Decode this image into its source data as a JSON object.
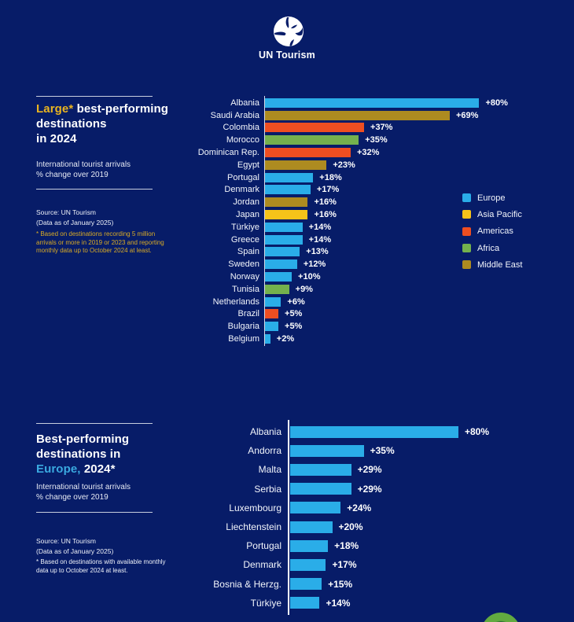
{
  "page": {
    "background": "#071c68"
  },
  "header": {
    "brand": "UN Tourism"
  },
  "colors": {
    "europe": "#2aade8",
    "asia_pacific": "#f6c319",
    "americas": "#ee4e21",
    "africa": "#74b14d",
    "middle_east": "#ad8b20",
    "accent_yellow": "#e9b420",
    "accent_blue": "#3aa9e0"
  },
  "panel_top": {
    "title_accent": "Large*",
    "title_after_accent": " best-performing",
    "title_line2": "destinations",
    "title_line3": "in 2024",
    "subtitle_line1": "International tourist arrivals",
    "subtitle_line2": "% change over 2019",
    "source_line1": "Source: UN Tourism",
    "source_line2": "(Data as of January 2025)",
    "footnote": "*  Based on destinations recording 5 million arrivals or more in 2019 or 2023 and reporting monthly data up to October 2024 at least."
  },
  "panel_bottom": {
    "title_line1": "Best-performing",
    "title_line2": "destinations in",
    "title_accent": "Europe,",
    "title_after_accent": " 2024*",
    "subtitle_line1": "International tourist arrivals",
    "subtitle_line2": "% change over 2019",
    "source_line1": "Source: UN Tourism",
    "source_line2": "(Data as of January 2025)",
    "footnote": "* Based on destinations with available monthly data up to October 2024 at least."
  },
  "chart_data": [
    {
      "type": "bar",
      "orientation": "horizontal",
      "title": "Large* best-performing destinations in 2024",
      "subtitle": "International tourist arrivals % change over 2019",
      "xlim": [
        0,
        84
      ],
      "grid": false,
      "legend_position": "right",
      "legend": [
        {
          "label": "Europe",
          "region": "europe"
        },
        {
          "label": "Asia Pacific",
          "region": "asia_pacific"
        },
        {
          "label": "Americas",
          "region": "americas"
        },
        {
          "label": "Africa",
          "region": "africa"
        },
        {
          "label": "Middle East",
          "region": "middle_east"
        }
      ],
      "rows": [
        {
          "label": "Albania",
          "value": 80,
          "display": "+80%",
          "region": "europe"
        },
        {
          "label": "Saudi Arabia",
          "value": 69,
          "display": "+69%",
          "region": "middle_east"
        },
        {
          "label": "Colombia",
          "value": 37,
          "display": "+37%",
          "region": "americas"
        },
        {
          "label": "Morocco",
          "value": 35,
          "display": "+35%",
          "region": "africa"
        },
        {
          "label": "Dominican Rep.",
          "value": 32,
          "display": "+32%",
          "region": "americas"
        },
        {
          "label": "Egypt",
          "value": 23,
          "display": "+23%",
          "region": "middle_east"
        },
        {
          "label": "Portugal",
          "value": 18,
          "display": "+18%",
          "region": "europe"
        },
        {
          "label": "Denmark",
          "value": 17,
          "display": "+17%",
          "region": "europe"
        },
        {
          "label": "Jordan",
          "value": 16,
          "display": "+16%",
          "region": "middle_east"
        },
        {
          "label": "Japan",
          "value": 16,
          "display": "+16%",
          "region": "asia_pacific"
        },
        {
          "label": "Türkiye",
          "value": 14,
          "display": "+14%",
          "region": "europe"
        },
        {
          "label": "Greece",
          "value": 14,
          "display": "+14%",
          "region": "europe"
        },
        {
          "label": "Spain",
          "value": 13,
          "display": "+13%",
          "region": "europe"
        },
        {
          "label": "Sweden",
          "value": 12,
          "display": "+12%",
          "region": "europe"
        },
        {
          "label": "Norway",
          "value": 10,
          "display": "+10%",
          "region": "europe"
        },
        {
          "label": "Tunisia",
          "value": 9,
          "display": "+9%",
          "region": "africa"
        },
        {
          "label": "Netherlands",
          "value": 6,
          "display": "+6%",
          "region": "europe"
        },
        {
          "label": "Brazil",
          "value": 5,
          "display": "+5%",
          "region": "americas"
        },
        {
          "label": "Bulgaria",
          "value": 5,
          "display": "+5%",
          "region": "europe"
        },
        {
          "label": "Belgium",
          "value": 2,
          "display": "+2%",
          "region": "europe"
        }
      ]
    },
    {
      "type": "bar",
      "orientation": "horizontal",
      "title": "Best-performing destinations in Europe, 2024*",
      "subtitle": "International tourist arrivals % change over 2019",
      "xlim": [
        0,
        84
      ],
      "grid": false,
      "rows": [
        {
          "label": "Albania",
          "value": 80,
          "display": "+80%",
          "region": "europe"
        },
        {
          "label": "Andorra",
          "value": 35,
          "display": "+35%",
          "region": "europe"
        },
        {
          "label": "Malta",
          "value": 29,
          "display": "+29%",
          "region": "europe"
        },
        {
          "label": "Serbia",
          "value": 29,
          "display": "+29%",
          "region": "europe"
        },
        {
          "label": "Luxembourg",
          "value": 24,
          "display": "+24%",
          "region": "europe"
        },
        {
          "label": "Liechtenstein",
          "value": 20,
          "display": "+20%",
          "region": "europe"
        },
        {
          "label": "Portugal",
          "value": 18,
          "display": "+18%",
          "region": "europe"
        },
        {
          "label": "Denmark",
          "value": 17,
          "display": "+17%",
          "region": "europe"
        },
        {
          "label": "Bosnia & Herzg.",
          "value": 15,
          "display": "+15%",
          "region": "europe"
        },
        {
          "label": "Türkiye",
          "value": 14,
          "display": "+14%",
          "region": "europe"
        }
      ]
    }
  ]
}
